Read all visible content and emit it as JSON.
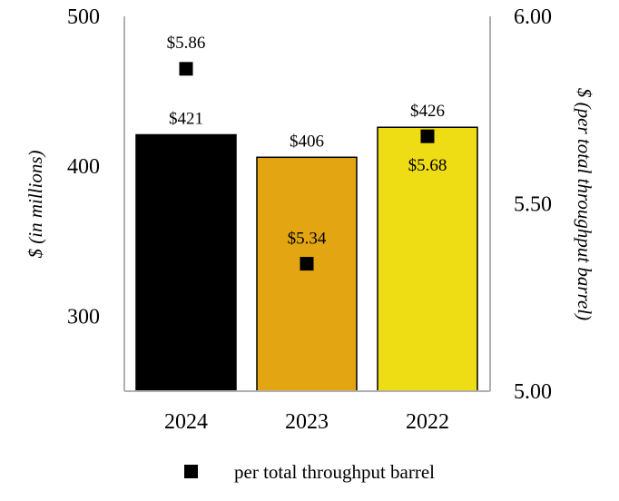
{
  "chart_data": {
    "type": "bar",
    "categories": [
      "2024",
      "2023",
      "2022"
    ],
    "series": [
      {
        "axis": "left",
        "kind": "bar",
        "values": [
          421,
          406,
          426
        ],
        "labels": [
          "$421",
          "$406",
          "$426"
        ],
        "colors": [
          "#000000",
          "#E3A512",
          "#EEDD14"
        ]
      },
      {
        "name": "per total throughput barrel",
        "axis": "right",
        "kind": "marker",
        "marker": "square",
        "values": [
          5.86,
          5.34,
          5.68
        ],
        "labels": [
          "$5.86",
          "$5.34",
          "$5.68"
        ],
        "color": "#000000"
      }
    ],
    "ylabel": "$ (in millions)",
    "y2label": "$ (per total throughput barrel)",
    "ylim": [
      250,
      500
    ],
    "y_ticks": [
      "300",
      "400",
      "500"
    ],
    "y2lim": [
      5.0,
      6.0
    ],
    "y2_ticks": [
      "5.00",
      "5.50",
      "6.00"
    ],
    "legend": {
      "position": "bottom",
      "label": "per total throughput barrel"
    },
    "grid": false
  }
}
